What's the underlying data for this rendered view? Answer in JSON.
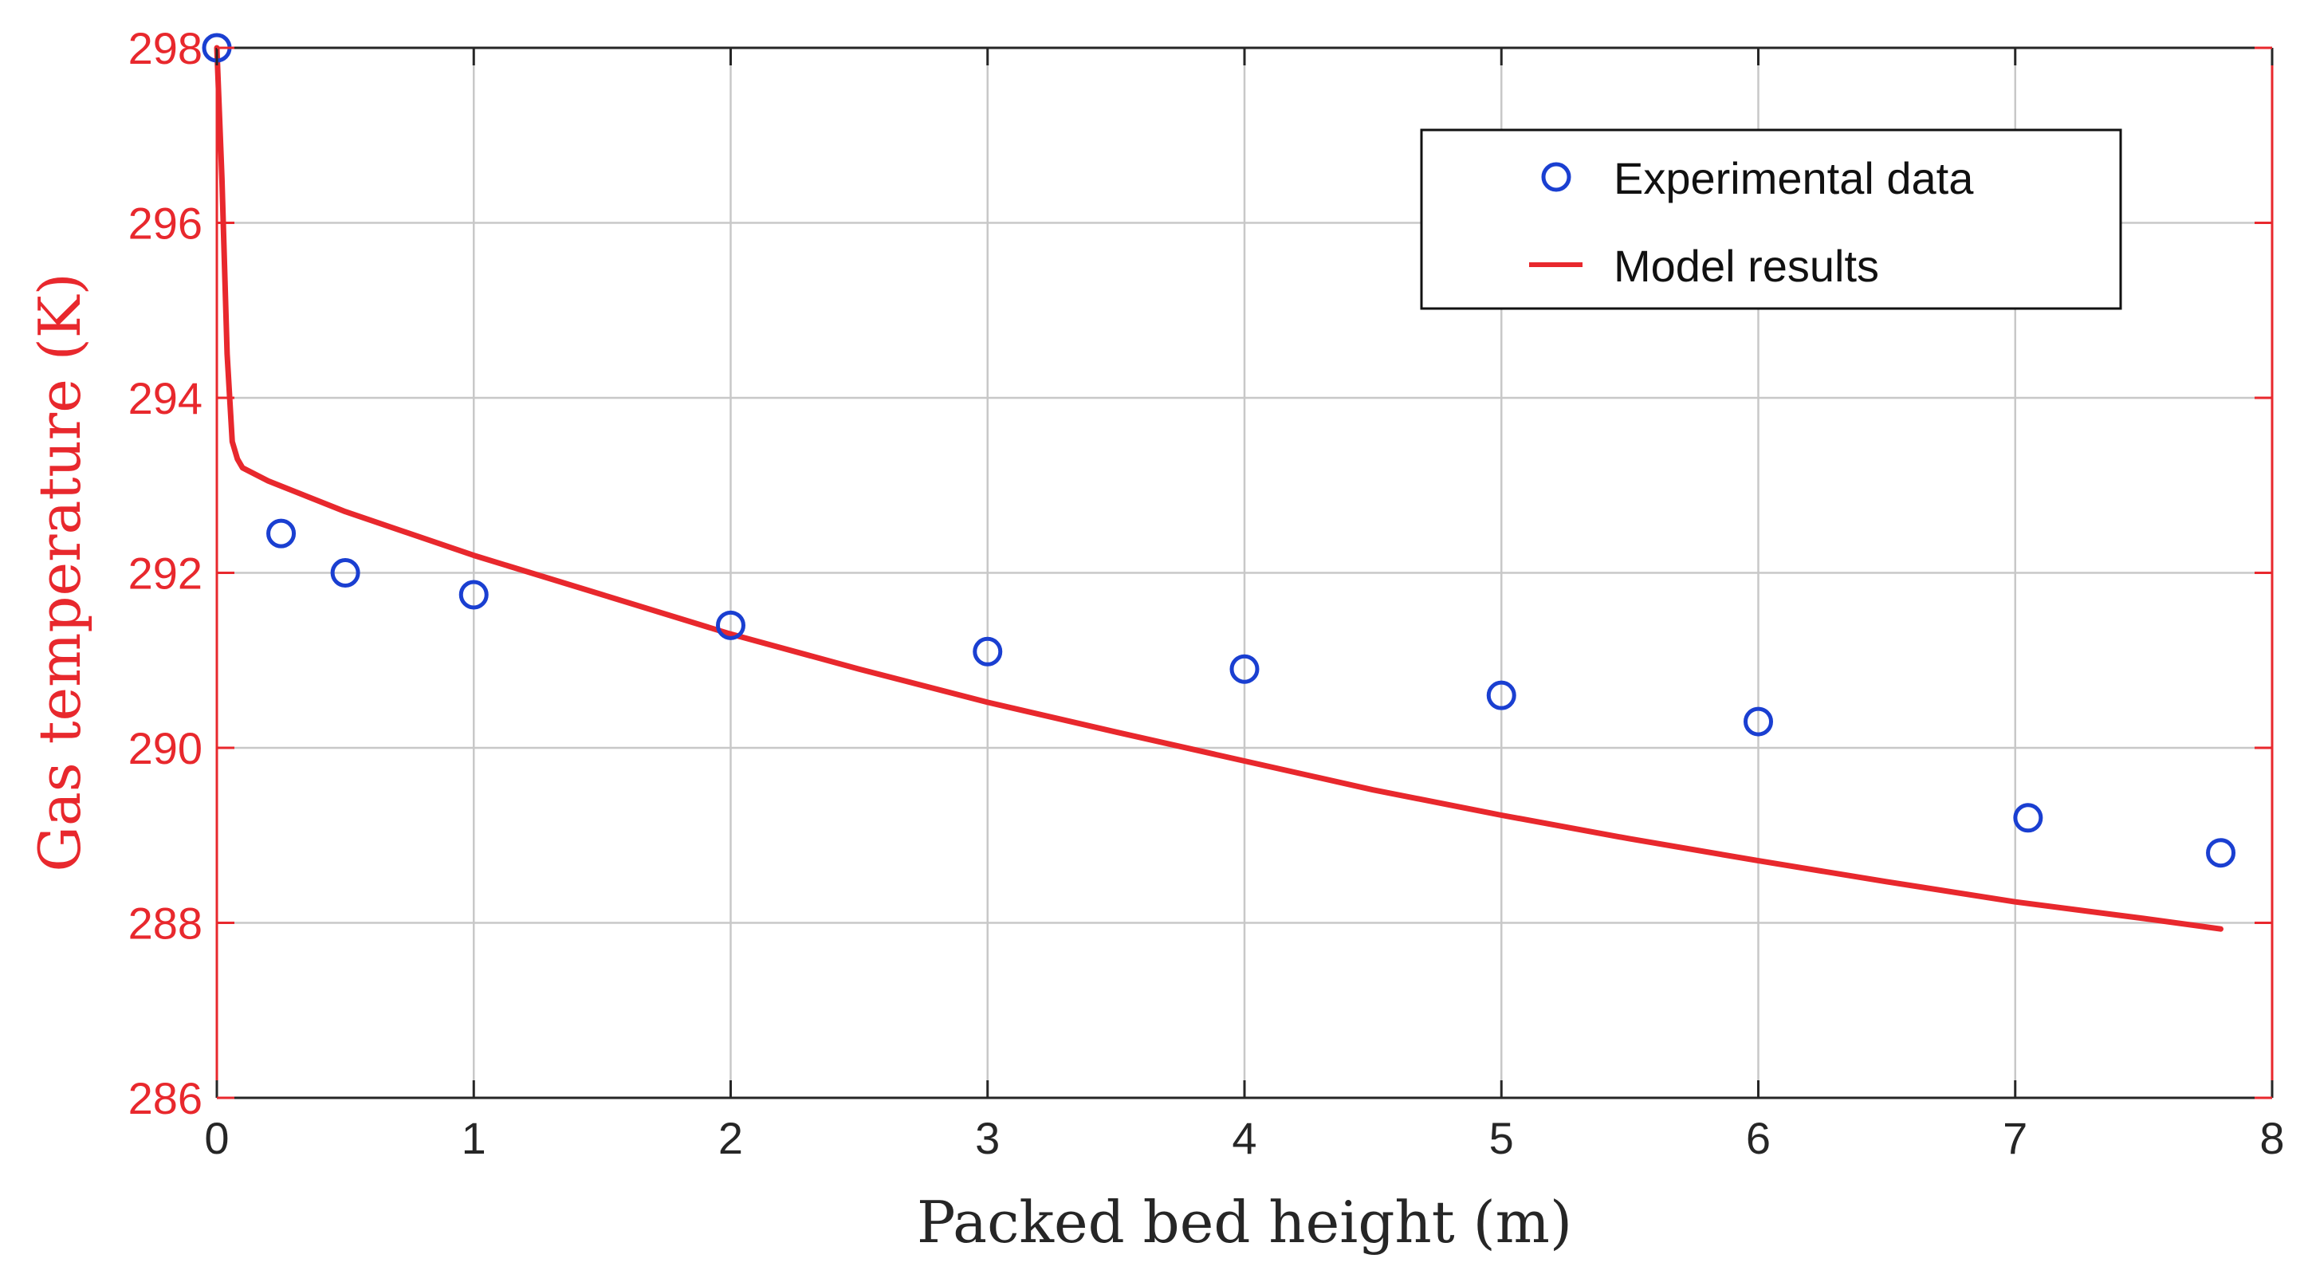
{
  "chart_data": {
    "type": "scatter+line",
    "title": "",
    "xlabel": "Packed bed height (m)",
    "ylabel": "Gas temperature (K)",
    "xlim": [
      0,
      8
    ],
    "ylim": [
      286,
      298
    ],
    "xticks": [
      0,
      1,
      2,
      3,
      4,
      5,
      6,
      7,
      8
    ],
    "yticks": [
      286,
      288,
      290,
      292,
      294,
      296,
      298
    ],
    "grid": true,
    "legend_position": "top-right",
    "series": [
      {
        "name": "Experimental data",
        "kind": "markers",
        "marker": "open-circle",
        "x": [
          0,
          0.25,
          0.5,
          1.0,
          2.0,
          3.0,
          4.0,
          5.0,
          6.0,
          7.05,
          7.8
        ],
        "y": [
          298.0,
          292.45,
          292.0,
          291.75,
          291.4,
          291.1,
          290.9,
          290.6,
          290.3,
          289.2,
          288.8
        ]
      },
      {
        "name": "Model results",
        "kind": "line",
        "x": [
          0,
          0.02,
          0.04,
          0.06,
          0.08,
          0.1,
          0.2,
          0.5,
          1.0,
          1.5,
          2.0,
          2.5,
          3.0,
          3.5,
          4.0,
          4.5,
          5.0,
          5.5,
          6.0,
          6.5,
          7.0,
          7.5,
          7.8
        ],
        "y": [
          298.0,
          296.5,
          294.5,
          293.5,
          293.3,
          293.2,
          293.05,
          292.7,
          292.2,
          291.75,
          291.3,
          290.9,
          290.52,
          290.18,
          289.85,
          289.52,
          289.23,
          288.96,
          288.71,
          288.47,
          288.24,
          288.05,
          287.93
        ]
      }
    ]
  },
  "colors": {
    "axis_y": "#e8282d",
    "axis_x": "#262626",
    "markers": "#1a3fd1",
    "line": "#e8282d",
    "grid": "#c8c8c8"
  }
}
